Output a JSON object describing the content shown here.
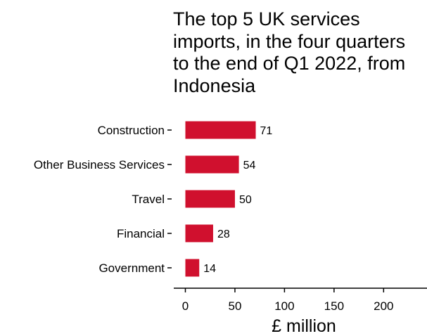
{
  "chart_data": {
    "type": "bar",
    "orientation": "horizontal",
    "title": "The top 5 UK services imports, in the four quarters to the end of Q1 2022, from Indonesia",
    "categories": [
      "Construction",
      "Other Business Services",
      "Travel",
      "Financial",
      "Government"
    ],
    "values": [
      71,
      54,
      50,
      28,
      14
    ],
    "data_labels": [
      "71",
      "54",
      "50",
      "28",
      "14"
    ],
    "xlabel": "£ million",
    "ylabel": "",
    "xlim": [
      0,
      220
    ],
    "xticks": [
      0,
      50,
      100,
      150,
      200
    ],
    "xtick_labels": [
      "0",
      "50",
      "100",
      "150",
      "200"
    ],
    "bar_color": "#d0102e",
    "grid": false,
    "legend": "none"
  }
}
